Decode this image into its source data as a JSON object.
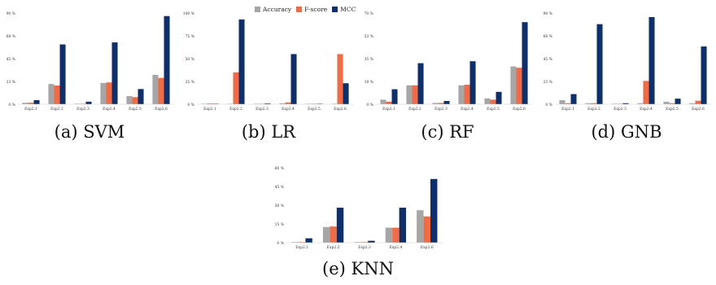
{
  "legend": [
    {
      "name": "Accuracy",
      "color": "#a6a6a6"
    },
    {
      "name": "F-score",
      "color": "#f26b47"
    },
    {
      "name": "MCC",
      "color": "#0f2f6b"
    }
  ],
  "captions": [
    "(a) SVM",
    "(b) LR",
    "(c) RF",
    "(d) GNB",
    "(e) KNN"
  ],
  "chart_data": [
    {
      "type": "bar",
      "caption": "(a) SVM",
      "categories": [
        "Exp2.1",
        "Exp2.2",
        "Exp2.3",
        "Exp2.4",
        "Exp2.5",
        "Exp2.6"
      ],
      "yticks": [
        "0 %",
        "23 %",
        "45 %",
        "68 %",
        "90 %"
      ],
      "ylim": [
        0,
        90
      ],
      "series": [
        {
          "name": "Accuracy",
          "values": [
            1.5,
            20,
            0.5,
            21,
            8,
            29
          ]
        },
        {
          "name": "F-score",
          "values": [
            1.5,
            18.5,
            0.5,
            21.5,
            7,
            26
          ]
        },
        {
          "name": "MCC",
          "values": [
            4,
            59,
            2.5,
            61,
            15,
            87
          ]
        }
      ]
    },
    {
      "type": "bar",
      "caption": "(b) LR",
      "categories": [
        "Exp2.1",
        "Exp2.2",
        "Exp2.3",
        "Exp2.4",
        "Exp2.5",
        "Exp2.6"
      ],
      "yticks": [
        "0 %",
        "25 %",
        "50 %",
        "75 %",
        "100 %"
      ],
      "ylim": [
        0,
        100
      ],
      "series": [
        {
          "name": "Accuracy",
          "values": [
            0.5,
            0.5,
            0.3,
            1,
            0.3,
            0.5
          ]
        },
        {
          "name": "F-score",
          "values": [
            0.8,
            35,
            0.3,
            2,
            0.3,
            55
          ]
        },
        {
          "name": "MCC",
          "values": [
            0.3,
            93,
            0.8,
            55,
            0.3,
            23
          ]
        }
      ]
    },
    {
      "type": "bar",
      "caption": "(c) RF",
      "categories": [
        "Exp2.1",
        "Exp2.2",
        "Exp2.3",
        "Exp2.4",
        "Exp2.5",
        "Exp2.6"
      ],
      "yticks": [
        "0 %",
        "18 %",
        "35 %",
        "53 %",
        "70 %"
      ],
      "ylim": [
        0,
        70
      ],
      "series": [
        {
          "name": "Accuracy",
          "values": [
            3.5,
            14.5,
            1,
            14.5,
            4.5,
            29
          ]
        },
        {
          "name": "F-score",
          "values": [
            2,
            14.5,
            1,
            15,
            3.5,
            28
          ]
        },
        {
          "name": "MCC",
          "values": [
            11.5,
            31.5,
            2.5,
            33,
            9.5,
            63
          ]
        }
      ]
    },
    {
      "type": "bar",
      "caption": "(d) GNB",
      "categories": [
        "Exp2.1",
        "Exp2.2",
        "Exp2.3",
        "Exp2.4",
        "Exp2.5",
        "Exp2.6"
      ],
      "yticks": [
        "0 %",
        "23 %",
        "45 %",
        "68 %",
        "90 %"
      ],
      "ylim": [
        0,
        90
      ],
      "series": [
        {
          "name": "Accuracy",
          "values": [
            4,
            1,
            0.5,
            1,
            2.5,
            1
          ]
        },
        {
          "name": "F-score",
          "values": [
            1,
            1,
            0.5,
            23,
            1,
            3.5
          ]
        },
        {
          "name": "MCC",
          "values": [
            10,
            79,
            1,
            86,
            5.5,
            57
          ]
        }
      ]
    },
    {
      "type": "bar",
      "caption": "(e) KNN",
      "categories": [
        "Exp2.1",
        "Exp2.2",
        "Exp2.3",
        "Exp2.4",
        "Exp2.6"
      ],
      "yticks": [
        "0 %",
        "15 %",
        "30 %",
        "45 %",
        "60 %"
      ],
      "ylim": [
        0,
        60
      ],
      "series": [
        {
          "name": "Accuracy",
          "values": [
            0.5,
            12.5,
            0.5,
            12,
            26
          ]
        },
        {
          "name": "F-score",
          "values": [
            0.5,
            13,
            0.5,
            12,
            21
          ]
        },
        {
          "name": "MCC",
          "values": [
            3.5,
            28,
            1.5,
            28,
            51
          ]
        }
      ]
    }
  ]
}
